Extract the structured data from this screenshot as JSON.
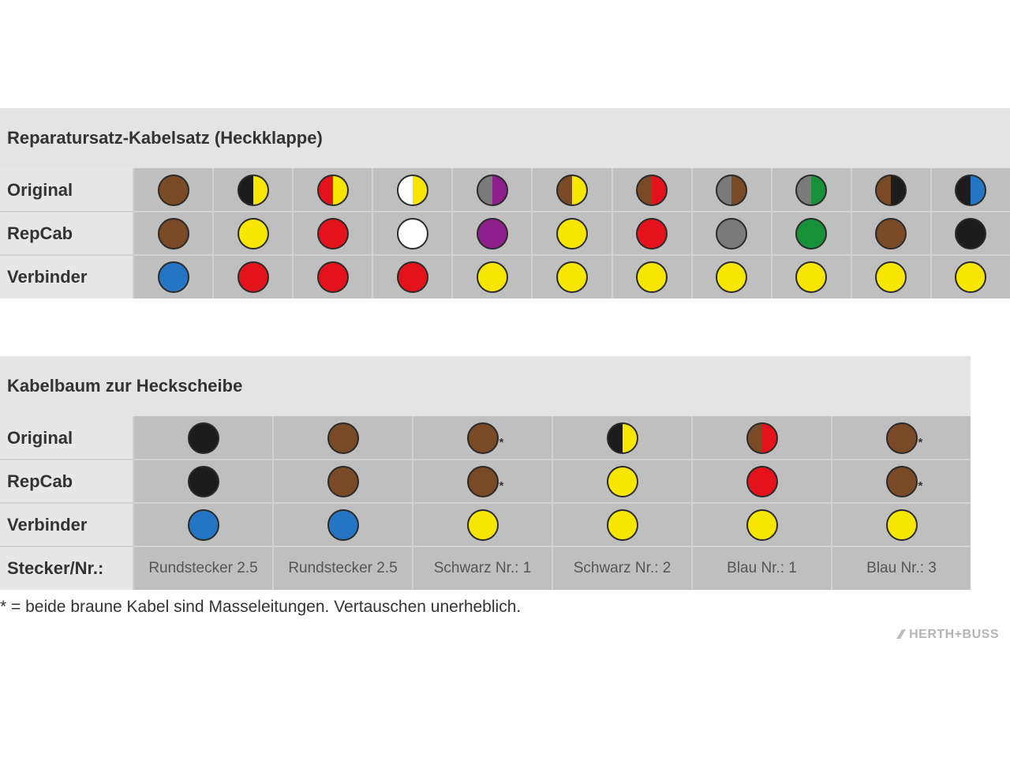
{
  "colors": {
    "brown": "#7a4a26",
    "yellow": "#f6e600",
    "black": "#1c1c1c",
    "red": "#e4131b",
    "white": "#ffffff",
    "violet": "#8f1f8c",
    "grey": "#7a7a7a",
    "green": "#16913a",
    "blue": "#2476c4"
  },
  "table1": {
    "title": "Reparatursatz-Kabelsatz (Heckklappe)",
    "rows": [
      {
        "label": "Original",
        "cells": [
          {
            "left": "brown",
            "right": "brown"
          },
          {
            "left": "black",
            "right": "yellow"
          },
          {
            "left": "red",
            "right": "yellow"
          },
          {
            "left": "white",
            "right": "yellow"
          },
          {
            "left": "grey",
            "right": "violet"
          },
          {
            "left": "brown",
            "right": "yellow"
          },
          {
            "left": "brown",
            "right": "red"
          },
          {
            "left": "grey",
            "right": "brown"
          },
          {
            "left": "grey",
            "right": "green"
          },
          {
            "left": "brown",
            "right": "black"
          },
          {
            "left": "black",
            "right": "blue"
          }
        ]
      },
      {
        "label": "RepCab",
        "cells": [
          {
            "left": "brown",
            "right": "brown"
          },
          {
            "left": "yellow",
            "right": "yellow"
          },
          {
            "left": "red",
            "right": "red"
          },
          {
            "left": "white",
            "right": "white"
          },
          {
            "left": "violet",
            "right": "violet"
          },
          {
            "left": "yellow",
            "right": "yellow"
          },
          {
            "left": "red",
            "right": "red"
          },
          {
            "left": "grey",
            "right": "grey"
          },
          {
            "left": "green",
            "right": "green"
          },
          {
            "left": "brown",
            "right": "brown"
          },
          {
            "left": "black",
            "right": "black"
          }
        ]
      },
      {
        "label": "Verbinder",
        "cells": [
          {
            "left": "blue",
            "right": "blue"
          },
          {
            "left": "red",
            "right": "red"
          },
          {
            "left": "red",
            "right": "red"
          },
          {
            "left": "red",
            "right": "red"
          },
          {
            "left": "yellow",
            "right": "yellow"
          },
          {
            "left": "yellow",
            "right": "yellow"
          },
          {
            "left": "yellow",
            "right": "yellow"
          },
          {
            "left": "yellow",
            "right": "yellow"
          },
          {
            "left": "yellow",
            "right": "yellow"
          },
          {
            "left": "yellow",
            "right": "yellow"
          },
          {
            "left": "yellow",
            "right": "yellow"
          }
        ]
      }
    ]
  },
  "table2": {
    "title": "Kabelbaum zur Heckscheibe",
    "rows": [
      {
        "label": "Original",
        "cells": [
          {
            "left": "black",
            "right": "black"
          },
          {
            "left": "brown",
            "right": "brown"
          },
          {
            "left": "brown",
            "right": "brown",
            "star": "*"
          },
          {
            "left": "black",
            "right": "yellow"
          },
          {
            "left": "brown",
            "right": "red"
          },
          {
            "left": "brown",
            "right": "brown",
            "star": "*"
          }
        ]
      },
      {
        "label": "RepCab",
        "cells": [
          {
            "left": "black",
            "right": "black"
          },
          {
            "left": "brown",
            "right": "brown"
          },
          {
            "left": "brown",
            "right": "brown",
            "star": "*"
          },
          {
            "left": "yellow",
            "right": "yellow"
          },
          {
            "left": "red",
            "right": "red"
          },
          {
            "left": "brown",
            "right": "brown",
            "star": "*"
          }
        ]
      },
      {
        "label": "Verbinder",
        "cells": [
          {
            "left": "blue",
            "right": "blue"
          },
          {
            "left": "blue",
            "right": "blue"
          },
          {
            "left": "yellow",
            "right": "yellow"
          },
          {
            "left": "yellow",
            "right": "yellow"
          },
          {
            "left": "yellow",
            "right": "yellow"
          },
          {
            "left": "yellow",
            "right": "yellow"
          }
        ]
      }
    ],
    "plug_row": {
      "label": "Stecker/Nr.:",
      "values": [
        "Rundstecker 2.5",
        "Rundstecker 2.5",
        "Schwarz Nr.: 1",
        "Schwarz Nr.: 2",
        "Blau Nr.: 1",
        "Blau Nr.: 3"
      ]
    }
  },
  "footnote": "* = beide braune Kabel sind Masseleitungen. Vertauschen unerheblich.",
  "brand": "HERTH+BUSS"
}
